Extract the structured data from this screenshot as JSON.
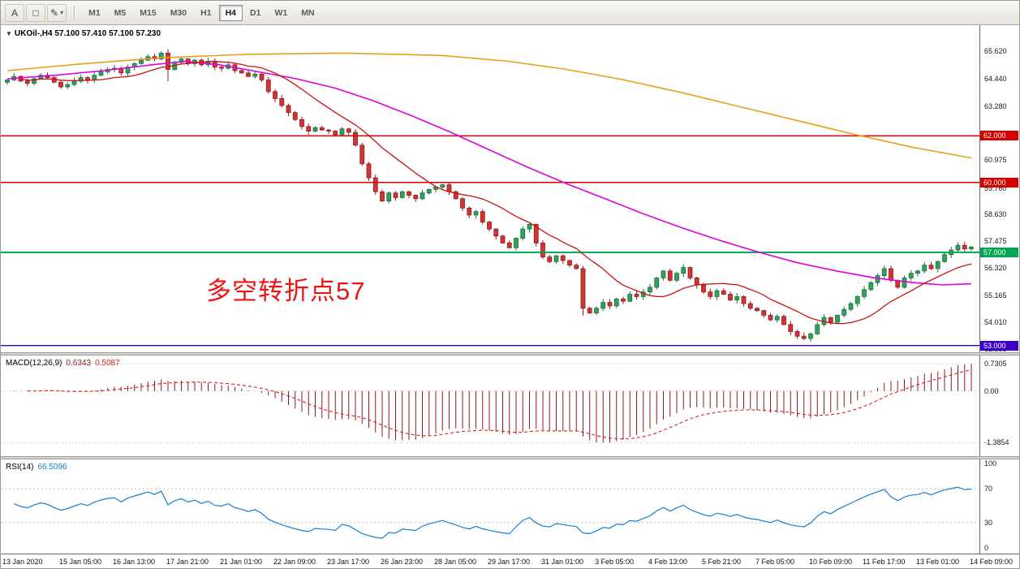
{
  "toolbar": {
    "tools": [
      {
        "name": "text-tool",
        "glyph": "A"
      },
      {
        "name": "select-tool",
        "glyph": "□"
      },
      {
        "name": "drawing-tool",
        "glyph": "✎",
        "dropdown": "▾"
      }
    ],
    "timeframes": [
      "M1",
      "M5",
      "M15",
      "M30",
      "H1",
      "H4",
      "D1",
      "W1",
      "MN"
    ],
    "active_timeframe": "H4"
  },
  "chart": {
    "title": "UKOil-,H4 57.100 57.410 57.100 57.230",
    "symbol": "UKOil-",
    "period": "H4",
    "collapse_icon": "▼",
    "annotation": "多空转折点57"
  },
  "macd": {
    "name": "MACD(12,26,9)",
    "value_main": "0.6343",
    "value_signal": "0.5087"
  },
  "rsi": {
    "name": "RSI(14)",
    "value": "66.5096"
  },
  "chart_data": {
    "type": "candlestick",
    "symbol": "UKOil-",
    "timeframe": "H4",
    "first_open": 64.3,
    "closes": [
      64.4,
      64.55,
      64.35,
      64.25,
      64.45,
      64.6,
      64.5,
      64.3,
      64.1,
      64.2,
      64.35,
      64.5,
      64.4,
      64.6,
      64.75,
      64.85,
      64.9,
      64.7,
      64.95,
      65.1,
      65.25,
      65.4,
      65.3,
      65.55,
      64.85,
      65.15,
      65.3,
      65.1,
      65.25,
      65.05,
      65.2,
      64.95,
      64.9,
      65.05,
      64.8,
      64.7,
      64.55,
      64.65,
      64.4,
      63.9,
      63.6,
      63.3,
      63.0,
      62.7,
      62.4,
      62.2,
      62.35,
      62.25,
      62.2,
      62.05,
      62.3,
      62.15,
      61.6,
      60.8,
      60.2,
      59.6,
      59.2,
      59.55,
      59.35,
      59.6,
      59.45,
      59.3,
      59.55,
      59.7,
      59.8,
      59.9,
      59.6,
      59.3,
      58.9,
      58.6,
      58.75,
      58.3,
      58.0,
      57.7,
      57.4,
      57.2,
      57.6,
      58.0,
      58.2,
      57.4,
      56.8,
      56.6,
      56.85,
      56.65,
      56.45,
      56.3,
      54.6,
      54.4,
      54.6,
      54.85,
      54.7,
      55.0,
      54.9,
      55.2,
      55.1,
      55.3,
      55.5,
      55.9,
      56.2,
      55.8,
      56.1,
      56.35,
      55.9,
      55.6,
      55.3,
      55.1,
      55.35,
      55.2,
      54.95,
      55.1,
      54.8,
      54.6,
      54.5,
      54.3,
      54.1,
      54.25,
      53.9,
      53.6,
      53.4,
      53.3,
      53.5,
      53.9,
      54.2,
      54.0,
      54.3,
      54.55,
      54.8,
      55.1,
      55.4,
      55.7,
      56.0,
      56.3,
      55.8,
      55.5,
      55.9,
      56.1,
      56.2,
      56.45,
      56.3,
      56.6,
      56.9,
      57.1,
      57.3,
      57.15,
      57.23
    ],
    "price_max": 66.75,
    "price_min": 52.71,
    "candle_up_color": "#33a05f",
    "candle_up_stroke": "#17713d",
    "candle_down_color": "#d23434",
    "candle_down_stroke": "#8e1d1d",
    "axis_labels": [
      "65.620",
      "64.440",
      "63.280",
      "60.975",
      "59.760",
      "58.630",
      "57.475",
      "56.320",
      "55.165",
      "54.010",
      "52.855"
    ],
    "hlines": [
      {
        "value": 62.0,
        "label": "62.000",
        "color": "#d40000",
        "w": 1.5
      },
      {
        "value": 60.0,
        "label": "60.000",
        "color": "#d40000",
        "w": 1.5
      },
      {
        "value": 57.0,
        "label": "57.000",
        "color": "#00a651",
        "w": 2
      },
      {
        "value": 53.0,
        "label": "53.000",
        "color": "#3a00c8",
        "w": 1.3
      }
    ],
    "wick_overrides": {
      "24": [
        65.72,
        64.35
      ],
      "86": [
        56.42,
        54.28
      ]
    },
    "ma_fast": {
      "period": 13,
      "color": "#cc1111"
    },
    "ma_mid": {
      "color": "#df00df",
      "points": [
        [
          0,
          64.45
        ],
        [
          0.05,
          64.6
        ],
        [
          0.1,
          64.8
        ],
        [
          0.15,
          65.05
        ],
        [
          0.185,
          65.2
        ],
        [
          0.22,
          65.05
        ],
        [
          0.26,
          64.75
        ],
        [
          0.3,
          64.45
        ],
        [
          0.34,
          64.05
        ],
        [
          0.38,
          63.5
        ],
        [
          0.42,
          62.85
        ],
        [
          0.46,
          62.15
        ],
        [
          0.5,
          61.4
        ],
        [
          0.54,
          60.65
        ],
        [
          0.58,
          59.95
        ],
        [
          0.62,
          59.3
        ],
        [
          0.66,
          58.65
        ],
        [
          0.7,
          58.05
        ],
        [
          0.74,
          57.5
        ],
        [
          0.78,
          57.0
        ],
        [
          0.82,
          56.55
        ],
        [
          0.86,
          56.2
        ],
        [
          0.9,
          55.9
        ],
        [
          0.94,
          55.7
        ],
        [
          0.97,
          55.6
        ],
        [
          1,
          55.65
        ]
      ]
    },
    "ma_slow": {
      "color": "#e6a117",
      "points": [
        [
          0,
          64.8
        ],
        [
          0.08,
          65.1
        ],
        [
          0.16,
          65.35
        ],
        [
          0.25,
          65.5
        ],
        [
          0.35,
          65.55
        ],
        [
          0.45,
          65.45
        ],
        [
          0.52,
          65.2
        ],
        [
          0.58,
          64.85
        ],
        [
          0.64,
          64.4
        ],
        [
          0.7,
          63.85
        ],
        [
          0.76,
          63.25
        ],
        [
          0.82,
          62.65
        ],
        [
          0.88,
          62.05
        ],
        [
          0.94,
          61.5
        ],
        [
          1,
          61.05
        ]
      ]
    },
    "macd": {
      "fast": 12,
      "slow": 26,
      "signal_period": 9,
      "hist_color": "#8b1a1a",
      "signal_color": "#d42020",
      "axis": [
        {
          "v": 0.7305,
          "label": "0.7305"
        },
        {
          "v": 0,
          "label": "0.00"
        },
        {
          "v": -1.3854,
          "label": "-1.3854"
        }
      ]
    },
    "rsi": {
      "period": 14,
      "color": "#1580d0",
      "levels": [
        {
          "v": 100,
          "label": "100",
          "dashed": false
        },
        {
          "v": 70,
          "label": "70",
          "dashed": true
        },
        {
          "v": 30,
          "label": "30",
          "dashed": true
        },
        {
          "v": 0,
          "label": "0",
          "dashed": false
        }
      ]
    },
    "time_labels": [
      "13 Jan 2020",
      "15 Jan 05:00",
      "16 Jan 13:00",
      "17 Jan 21:00",
      "21 Jan 01:00",
      "22 Jan 09:00",
      "23 Jan 17:00",
      "26 Jan 23:00",
      "28 Jan 05:00",
      "29 Jan 17:00",
      "31 Jan 01:00",
      "3 Feb 05:00",
      "4 Feb 13:00",
      "5 Feb 21:00",
      "7 Feb 05:00",
      "10 Feb 09:00",
      "11 Feb 17:00",
      "13 Feb 01:00",
      "14 Feb 09:00"
    ]
  }
}
